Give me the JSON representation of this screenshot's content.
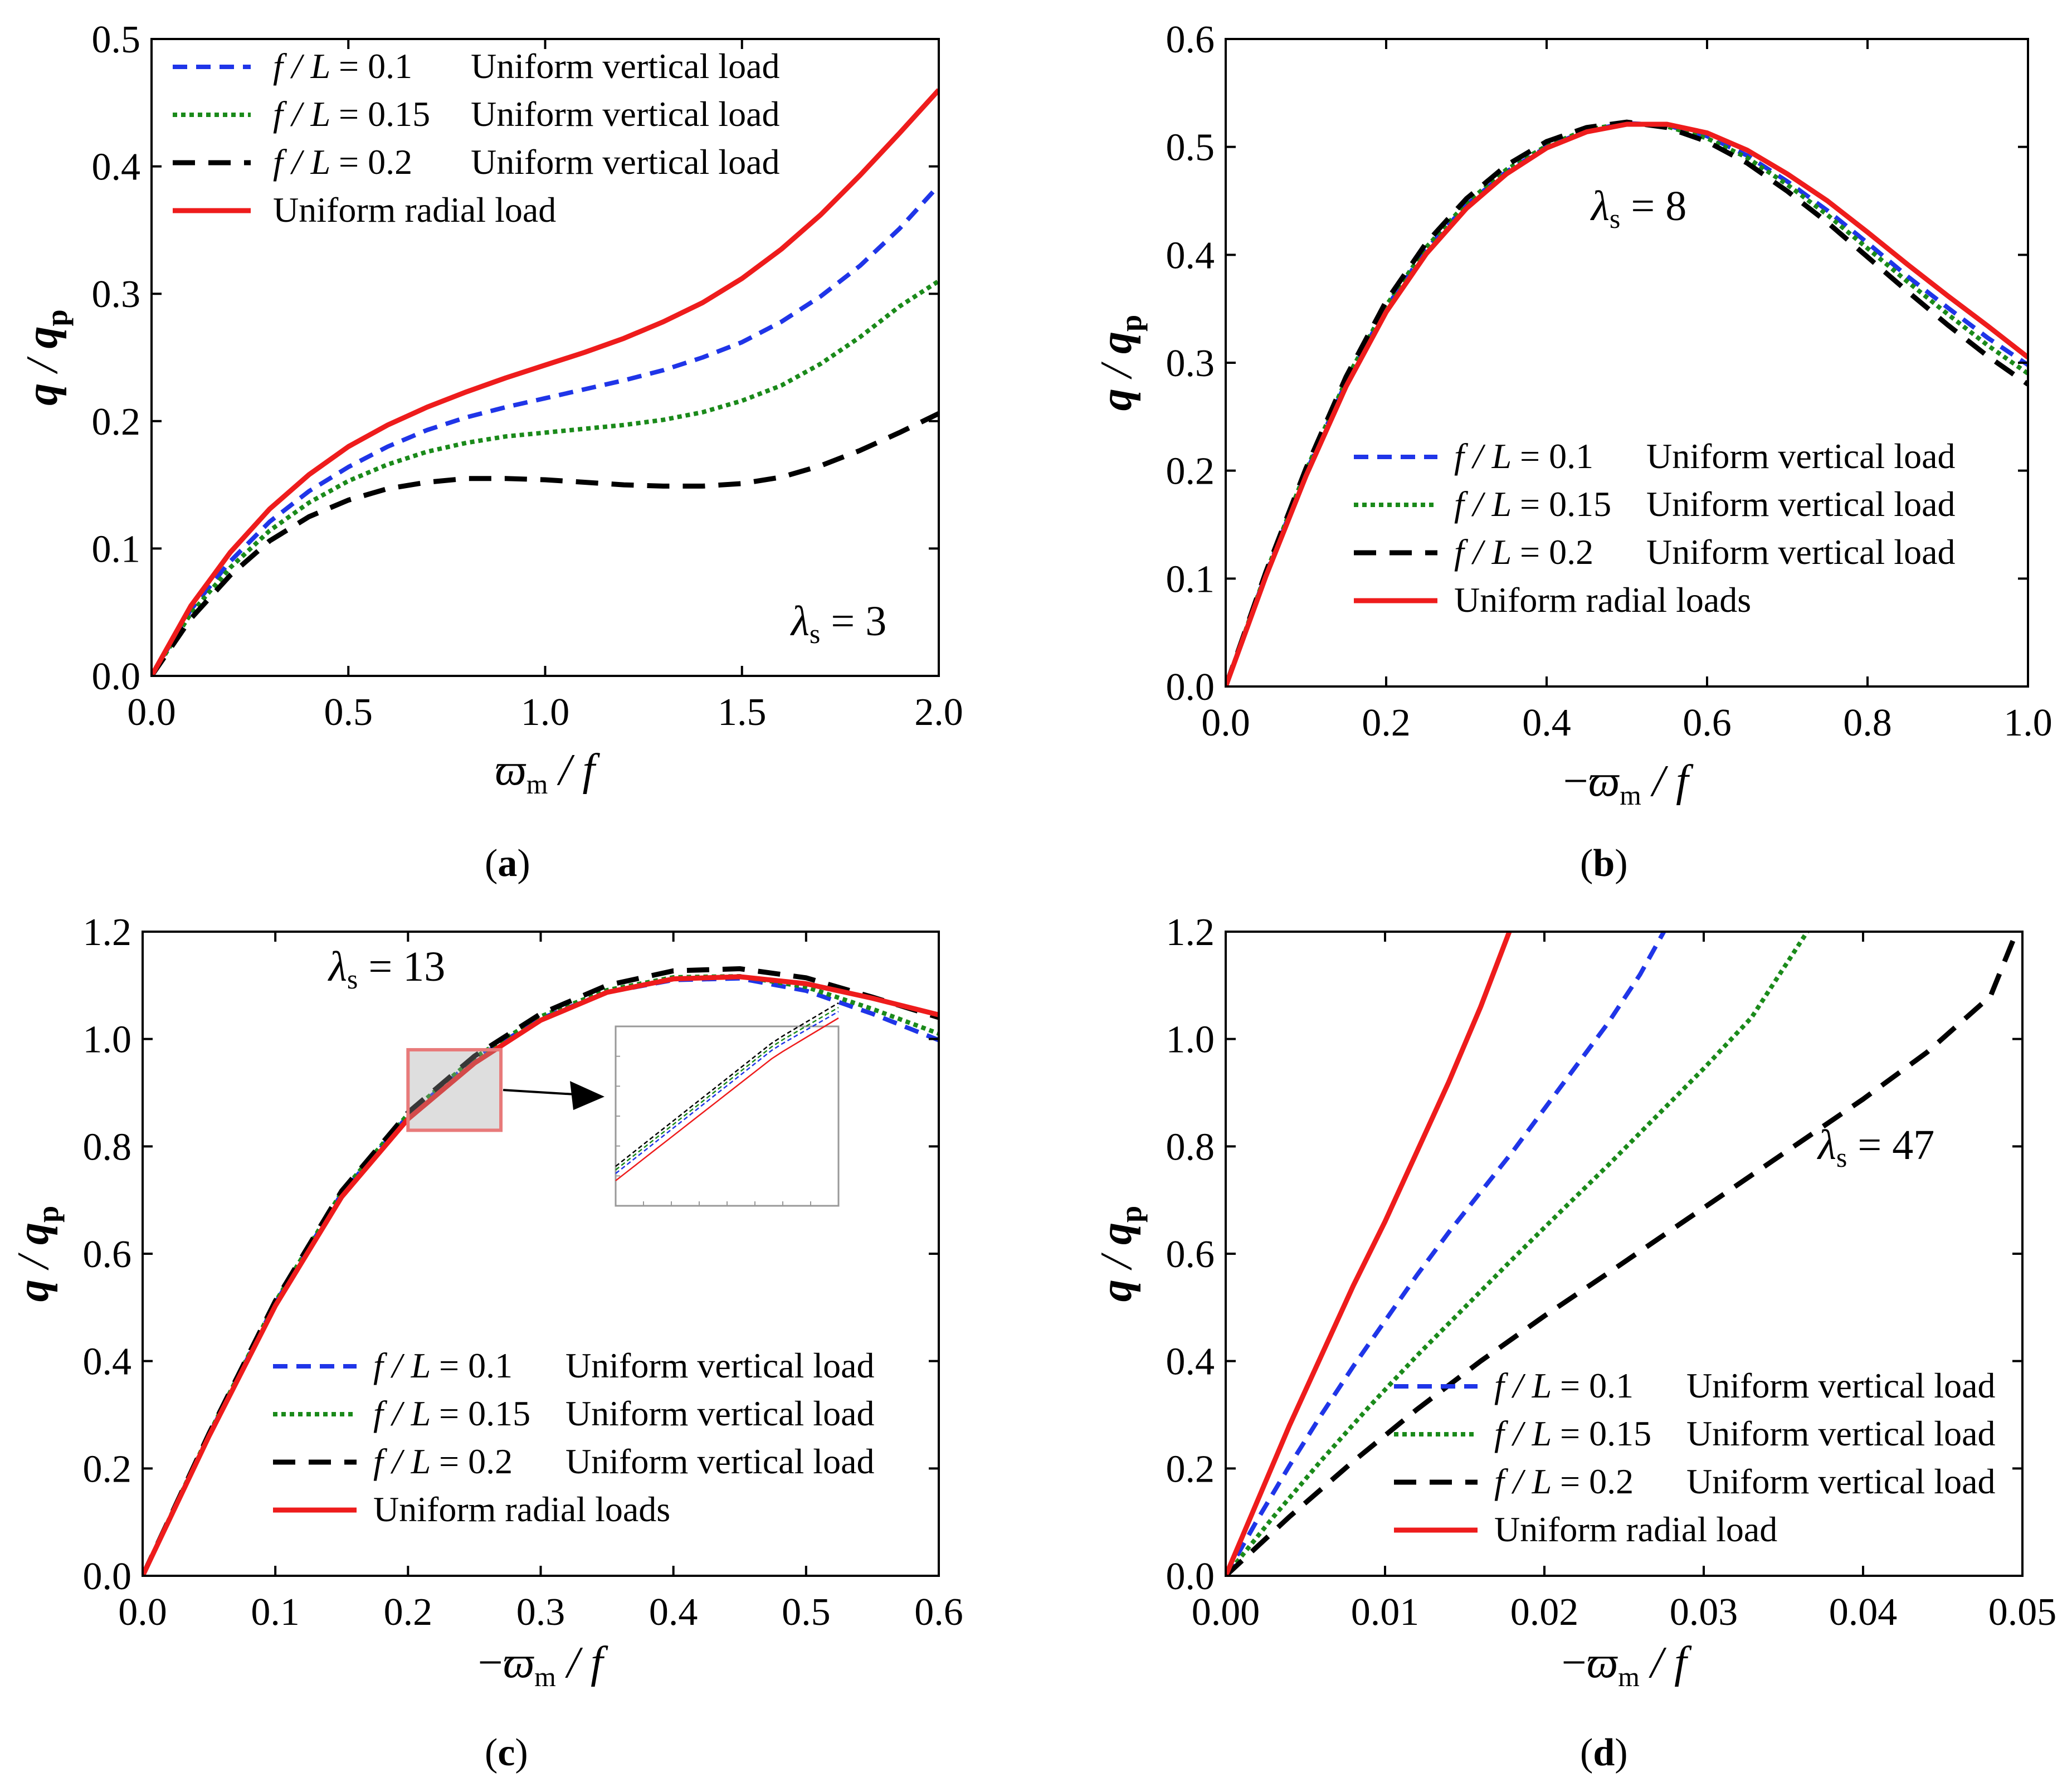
{
  "figure": {
    "legend_labels": {
      "series_uniform_vertical": "Uniform vertical load",
      "fl_prefix": "f / L",
      "radial_load": "Uniform radial load",
      "radial_loads": "Uniform radial loads"
    },
    "colors": {
      "fl01": "#1f35e8",
      "fl015": "#1a8a1a",
      "fl02": "#000000",
      "radial": "#ee1c1c",
      "zoom_box": "#e87a7a"
    }
  },
  "chart_data": [
    {
      "id": "a",
      "type": "line",
      "caption": "(a)",
      "annotation": "λs = 3",
      "xlabel": "ϖm / f",
      "ylabel": "q / qp",
      "xlim": [
        0,
        2.0
      ],
      "ylim": [
        0,
        0.5
      ],
      "xticks": [
        "0.0",
        "0.5",
        "1.0",
        "1.5",
        "2.0"
      ],
      "yticks": [
        "0.0",
        "0.1",
        "0.2",
        "0.3",
        "0.4",
        "0.5"
      ],
      "legend_position": "top-left",
      "series": [
        {
          "name": "f/L = 0.1",
          "label": "f / L =  0.1",
          "desc": "Uniform vertical load",
          "style": "fl01",
          "x": [
            0,
            0.1,
            0.2,
            0.3,
            0.4,
            0.5,
            0.6,
            0.7,
            0.8,
            0.9,
            1.0,
            1.1,
            1.2,
            1.3,
            1.4,
            1.5,
            1.6,
            1.7,
            1.8,
            1.9,
            2.0
          ],
          "y": [
            0,
            0.052,
            0.09,
            0.121,
            0.145,
            0.164,
            0.18,
            0.193,
            0.203,
            0.211,
            0.218,
            0.225,
            0.232,
            0.24,
            0.25,
            0.262,
            0.278,
            0.298,
            0.322,
            0.351,
            0.385
          ]
        },
        {
          "name": "f/L = 0.15",
          "label": "f / L =  0.15",
          "desc": "Uniform vertical load",
          "style": "fl015",
          "x": [
            0,
            0.1,
            0.2,
            0.3,
            0.4,
            0.5,
            0.6,
            0.7,
            0.8,
            0.9,
            1.0,
            1.1,
            1.2,
            1.3,
            1.4,
            1.5,
            1.6,
            1.7,
            1.8,
            1.9,
            2.0
          ],
          "y": [
            0,
            0.049,
            0.085,
            0.114,
            0.136,
            0.153,
            0.166,
            0.176,
            0.183,
            0.188,
            0.191,
            0.194,
            0.197,
            0.201,
            0.207,
            0.216,
            0.228,
            0.245,
            0.266,
            0.29,
            0.31
          ]
        },
        {
          "name": "f/L = 0.2",
          "label": "f / L =  0.2",
          "desc": "Uniform vertical load",
          "style": "fl02",
          "x": [
            0,
            0.1,
            0.2,
            0.3,
            0.4,
            0.5,
            0.6,
            0.7,
            0.8,
            0.9,
            1.0,
            1.1,
            1.2,
            1.3,
            1.4,
            1.5,
            1.6,
            1.7,
            1.8,
            1.9,
            2.0
          ],
          "y": [
            0,
            0.045,
            0.079,
            0.106,
            0.125,
            0.138,
            0.147,
            0.152,
            0.155,
            0.155,
            0.154,
            0.152,
            0.15,
            0.149,
            0.149,
            0.151,
            0.156,
            0.165,
            0.177,
            0.191,
            0.206
          ]
        },
        {
          "name": "Uniform radial load",
          "label": "Uniform radial load",
          "desc": "",
          "style": "radial",
          "x": [
            0,
            0.1,
            0.2,
            0.3,
            0.4,
            0.5,
            0.6,
            0.7,
            0.8,
            0.9,
            1.0,
            1.1,
            1.2,
            1.3,
            1.4,
            1.5,
            1.6,
            1.7,
            1.8,
            1.9,
            2.0
          ],
          "y": [
            0,
            0.055,
            0.097,
            0.131,
            0.158,
            0.18,
            0.197,
            0.211,
            0.223,
            0.234,
            0.244,
            0.254,
            0.265,
            0.278,
            0.293,
            0.312,
            0.335,
            0.362,
            0.393,
            0.426,
            0.46
          ]
        }
      ]
    },
    {
      "id": "b",
      "type": "line",
      "caption": "(b)",
      "annotation": "λs = 8",
      "xlabel": "−ϖm / f",
      "ylabel": "q / qp",
      "xlim": [
        0,
        1.0
      ],
      "ylim": [
        0,
        0.6
      ],
      "xticks": [
        "0.0",
        "0.2",
        "0.4",
        "0.6",
        "0.8",
        "1.0"
      ],
      "yticks": [
        "0.0",
        "0.1",
        "0.2",
        "0.3",
        "0.4",
        "0.5",
        "0.6"
      ],
      "legend_position": "bottom-right",
      "series": [
        {
          "name": "f/L = 0.1",
          "label": "f / L = 0.1",
          "desc": "Uniform vertical load",
          "style": "fl01",
          "x": [
            0,
            0.05,
            0.1,
            0.15,
            0.2,
            0.25,
            0.3,
            0.35,
            0.4,
            0.45,
            0.5,
            0.55,
            0.6,
            0.65,
            0.7,
            0.75,
            0.8,
            0.85,
            0.9,
            0.95,
            1.0
          ],
          "y": [
            0,
            0.104,
            0.198,
            0.282,
            0.351,
            0.405,
            0.446,
            0.477,
            0.5,
            0.515,
            0.522,
            0.52,
            0.51,
            0.492,
            0.468,
            0.441,
            0.411,
            0.38,
            0.351,
            0.323,
            0.298
          ]
        },
        {
          "name": "f/L = 0.15",
          "label": "f / L = 0.15",
          "desc": "Uniform vertical load",
          "style": "fl015",
          "x": [
            0,
            0.05,
            0.1,
            0.15,
            0.2,
            0.25,
            0.3,
            0.35,
            0.4,
            0.45,
            0.5,
            0.55,
            0.6,
            0.65,
            0.7,
            0.75,
            0.8,
            0.85,
            0.9,
            0.95,
            1.0
          ],
          "y": [
            0,
            0.105,
            0.2,
            0.284,
            0.353,
            0.407,
            0.448,
            0.479,
            0.501,
            0.516,
            0.522,
            0.519,
            0.508,
            0.49,
            0.465,
            0.437,
            0.406,
            0.375,
            0.345,
            0.316,
            0.29
          ]
        },
        {
          "name": "f/L = 0.2",
          "label": "f / L = 0.2",
          "desc": "Uniform vertical load",
          "style": "fl02",
          "x": [
            0,
            0.05,
            0.1,
            0.15,
            0.2,
            0.25,
            0.3,
            0.35,
            0.4,
            0.45,
            0.5,
            0.55,
            0.6,
            0.65,
            0.7,
            0.75,
            0.8,
            0.85,
            0.9,
            0.95,
            1.0
          ],
          "y": [
            0,
            0.106,
            0.202,
            0.287,
            0.357,
            0.411,
            0.452,
            0.483,
            0.505,
            0.518,
            0.523,
            0.518,
            0.505,
            0.485,
            0.459,
            0.43,
            0.398,
            0.366,
            0.335,
            0.306,
            0.28
          ]
        },
        {
          "name": "Uniform radial loads",
          "label": "Uniform radial loads",
          "desc": "",
          "style": "radial",
          "x": [
            0,
            0.05,
            0.1,
            0.15,
            0.2,
            0.25,
            0.3,
            0.35,
            0.4,
            0.45,
            0.5,
            0.55,
            0.6,
            0.65,
            0.7,
            0.75,
            0.8,
            0.85,
            0.9,
            0.95,
            1.0
          ],
          "y": [
            0,
            0.102,
            0.195,
            0.278,
            0.347,
            0.401,
            0.443,
            0.475,
            0.499,
            0.514,
            0.521,
            0.521,
            0.513,
            0.497,
            0.475,
            0.45,
            0.421,
            0.391,
            0.362,
            0.334,
            0.305
          ]
        }
      ]
    },
    {
      "id": "c",
      "type": "line",
      "caption": "(c)",
      "annotation": "λs = 13",
      "xlabel": "−ϖm / f",
      "ylabel": "q / qp",
      "xlim": [
        0,
        0.6
      ],
      "ylim": [
        0,
        1.2
      ],
      "xticks": [
        "0.0",
        "0.1",
        "0.2",
        "0.3",
        "0.4",
        "0.5",
        "0.6"
      ],
      "yticks": [
        "0.0",
        "0.2",
        "0.4",
        "0.6",
        "0.8",
        "1.0",
        "1.2"
      ],
      "legend_position": "bottom-left",
      "zoom_region": {
        "x": [
          0.2,
          0.27
        ],
        "y": [
          0.83,
          0.98
        ]
      },
      "series": [
        {
          "name": "f/L = 0.1",
          "label": "f / L = 0.1",
          "desc": "Uniform vertical load",
          "style": "fl01",
          "x": [
            0,
            0.05,
            0.1,
            0.15,
            0.2,
            0.25,
            0.3,
            0.35,
            0.4,
            0.45,
            0.5,
            0.55,
            0.6
          ],
          "y": [
            0,
            0.262,
            0.508,
            0.712,
            0.857,
            0.962,
            1.038,
            1.087,
            1.11,
            1.113,
            1.09,
            1.047,
            0.998
          ]
        },
        {
          "name": "f/L = 0.15",
          "label": "f / L = 0.15",
          "desc": "Uniform vertical load",
          "style": "fl015",
          "x": [
            0,
            0.05,
            0.1,
            0.15,
            0.2,
            0.25,
            0.3,
            0.35,
            0.4,
            0.45,
            0.5,
            0.55,
            0.6
          ],
          "y": [
            0,
            0.264,
            0.51,
            0.715,
            0.86,
            0.965,
            1.042,
            1.091,
            1.115,
            1.117,
            1.097,
            1.056,
            1.01
          ]
        },
        {
          "name": "f/L = 0.2",
          "label": "f / L = 0.2",
          "desc": "Uniform vertical load",
          "style": "fl02",
          "x": [
            0,
            0.05,
            0.1,
            0.15,
            0.2,
            0.25,
            0.3,
            0.35,
            0.4,
            0.45,
            0.5,
            0.55,
            0.6
          ],
          "y": [
            0,
            0.265,
            0.512,
            0.717,
            0.863,
            0.968,
            1.047,
            1.1,
            1.127,
            1.131,
            1.114,
            1.078,
            1.04
          ]
        },
        {
          "name": "Uniform radial loads",
          "label": "Uniform radial loads",
          "desc": "",
          "style": "radial",
          "x": [
            0,
            0.05,
            0.1,
            0.15,
            0.2,
            0.25,
            0.3,
            0.35,
            0.4,
            0.45,
            0.5,
            0.55,
            0.6
          ],
          "y": [
            0,
            0.26,
            0.503,
            0.706,
            0.851,
            0.955,
            1.035,
            1.087,
            1.112,
            1.116,
            1.103,
            1.076,
            1.045
          ]
        }
      ]
    },
    {
      "id": "d",
      "type": "line",
      "caption": "(d)",
      "annotation": "λs = 47",
      "xlabel": "−ϖm / f",
      "ylabel": "q / qp",
      "xlim": [
        0,
        0.05
      ],
      "ylim": [
        0,
        1.2
      ],
      "xticks": [
        "0.00",
        "0.01",
        "0.02",
        "0.03",
        "0.04",
        "0.05"
      ],
      "yticks": [
        "0.0",
        "0.2",
        "0.4",
        "0.6",
        "0.8",
        "1.0",
        "1.2"
      ],
      "legend_position": "bottom-right",
      "series": [
        {
          "name": "f/L = 0.1",
          "label": "f / L = 0.1",
          "desc": "Uniform vertical load",
          "style": "fl01",
          "x": [
            0,
            0.002,
            0.004,
            0.006,
            0.008,
            0.01,
            0.012,
            0.014,
            0.016,
            0.018,
            0.02,
            0.022,
            0.024,
            0.026,
            0.0275
          ],
          "y": [
            0,
            0.105,
            0.205,
            0.3,
            0.39,
            0.475,
            0.56,
            0.64,
            0.715,
            0.79,
            0.87,
            0.95,
            1.03,
            1.12,
            1.2
          ]
        },
        {
          "name": "f/L = 0.15",
          "label": "f / L = 0.15",
          "desc": "Uniform vertical load",
          "style": "fl015",
          "x": [
            0,
            0.003,
            0.006,
            0.009,
            0.012,
            0.015,
            0.018,
            0.021,
            0.024,
            0.027,
            0.03,
            0.033,
            0.0365
          ],
          "y": [
            0,
            0.11,
            0.215,
            0.315,
            0.41,
            0.5,
            0.59,
            0.678,
            0.765,
            0.855,
            0.945,
            1.04,
            1.2
          ]
        },
        {
          "name": "f/L = 0.2",
          "label": "f / L = 0.2",
          "desc": "Uniform vertical load",
          "style": "fl02",
          "x": [
            0,
            0.004,
            0.008,
            0.012,
            0.016,
            0.02,
            0.024,
            0.028,
            0.032,
            0.036,
            0.04,
            0.044,
            0.048,
            0.0495
          ],
          "y": [
            0,
            0.11,
            0.213,
            0.31,
            0.4,
            0.484,
            0.564,
            0.645,
            0.726,
            0.807,
            0.888,
            0.975,
            1.08,
            1.19
          ]
        },
        {
          "name": "Uniform radial load",
          "label": "Uniform radial load",
          "desc": "",
          "style": "radial",
          "x": [
            0,
            0.002,
            0.004,
            0.006,
            0.008,
            0.01,
            0.012,
            0.014,
            0.016,
            0.0178
          ],
          "y": [
            0,
            0.14,
            0.28,
            0.41,
            0.54,
            0.66,
            0.79,
            0.92,
            1.06,
            1.2
          ]
        }
      ]
    }
  ]
}
